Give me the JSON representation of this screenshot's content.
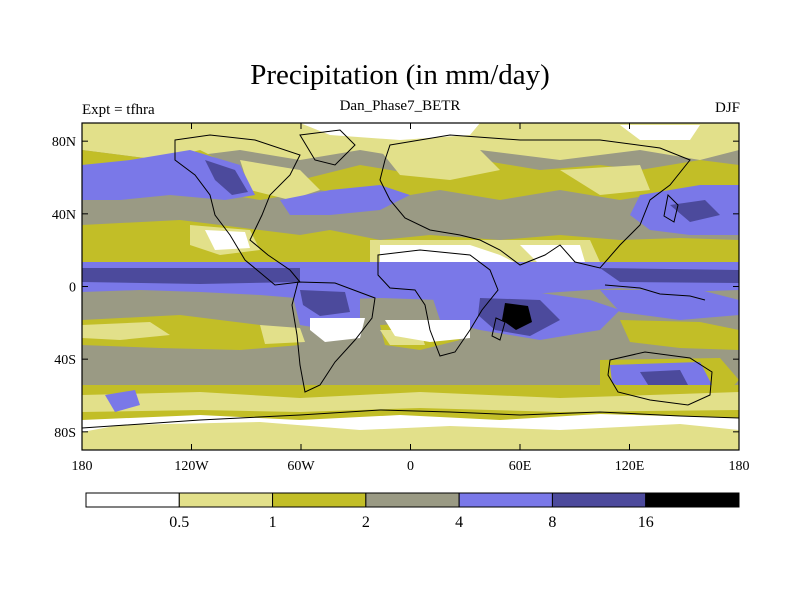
{
  "header": {
    "title": "Precipitation (in mm/day)",
    "subtitle": "Dan_Phase7_BETR",
    "left_label": "Expt = tfhra",
    "right_label": "DJF"
  },
  "axes": {
    "x_ticks": [
      {
        "value": -180,
        "label": "180"
      },
      {
        "value": -120,
        "label": "120W"
      },
      {
        "value": -60,
        "label": "60W"
      },
      {
        "value": 0,
        "label": "0"
      },
      {
        "value": 60,
        "label": "60E"
      },
      {
        "value": 120,
        "label": "120E"
      },
      {
        "value": 180,
        "label": "180"
      }
    ],
    "y_ticks": [
      {
        "value": 80,
        "label": "80N"
      },
      {
        "value": 40,
        "label": "40N"
      },
      {
        "value": 0,
        "label": "0"
      },
      {
        "value": -40,
        "label": "40S"
      },
      {
        "value": -80,
        "label": "80S"
      }
    ],
    "lon_range": [
      -180,
      180
    ],
    "lat_range": [
      -90,
      90
    ]
  },
  "colorbar": {
    "colors": [
      "#ffffff",
      "#e2e08a",
      "#c2be27",
      "#9a9a84",
      "#7a78e8",
      "#4c4a9c",
      "#000000"
    ],
    "labels": [
      "0.5",
      "1",
      "2",
      "4",
      "8",
      "16"
    ]
  },
  "map": {
    "palette": {
      "white": "#ffffff",
      "light_yellow": "#e2e08a",
      "olive": "#c2be27",
      "gray": "#9a9a84",
      "blue": "#7a78e8",
      "dark_blue": "#4c4a9c",
      "black": "#000000"
    },
    "coastline_color": "#000000"
  }
}
